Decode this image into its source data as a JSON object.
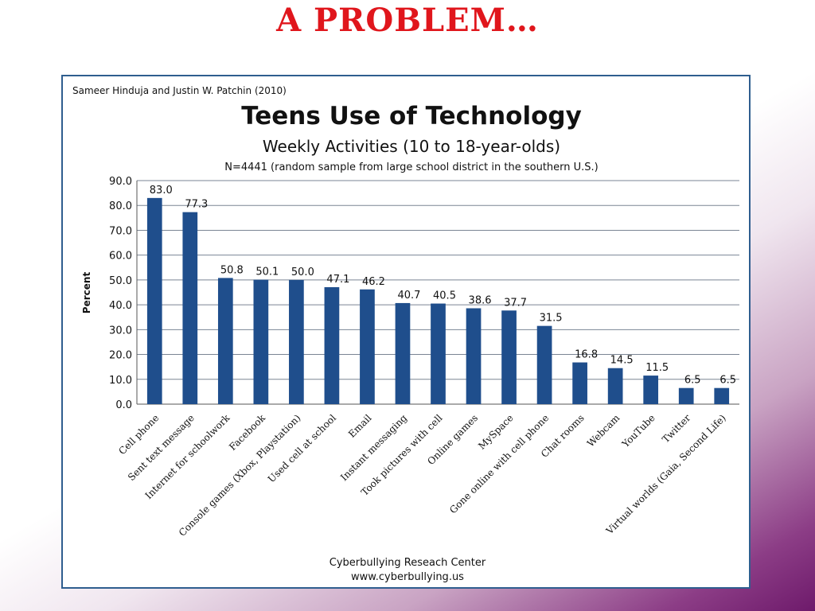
{
  "slide": {
    "title": "A problem…"
  },
  "chart_data": {
    "type": "bar",
    "source_note": "Sameer Hinduja and Justin W. Patchin (2010)",
    "title": "Teens Use of Technology",
    "subtitle": "Weekly Activities (10 to 18-year-olds)",
    "note": "N=4441 (random sample from large school district in the southern U.S.)",
    "ylabel": "Percent",
    "xlabel": "",
    "ylim": [
      0,
      90
    ],
    "ytick_labels": [
      "0.0",
      "10.0",
      "20.0",
      "30.0",
      "40.0",
      "50.0",
      "60.0",
      "70.0",
      "80.0",
      "90.0"
    ],
    "grid": "horizontal",
    "bar_color": "#1f4e8c",
    "categories": [
      "Cell phone",
      "Sent text message",
      "Internet for schoolwork",
      "Facebook",
      "Console games (Xbox, Playstation)",
      "Used cell at school",
      "Email",
      "Instant messaging",
      "Took pictures with cell",
      "Online games",
      "MySpace",
      "Gone online with cell phone",
      "Chat rooms",
      "Webcam",
      "YouTube",
      "Twitter",
      "Virtual worlds (Gaia, Second Life)"
    ],
    "values": [
      83.0,
      77.3,
      50.8,
      50.1,
      50.0,
      47.1,
      46.2,
      40.7,
      40.5,
      38.6,
      37.7,
      31.5,
      16.8,
      14.5,
      11.5,
      6.5,
      6.5
    ],
    "value_labels": [
      "83.0",
      "77.3",
      "50.8",
      "50.1",
      "50.0",
      "47.1",
      "46.2",
      "40.7",
      "40.5",
      "38.6",
      "37.7",
      "31.5",
      "16.8",
      "14.5",
      "11.5",
      "6.5",
      "6.5"
    ],
    "footer_lines": [
      "Cyberbullying Reseach Center",
      "www.cyberbullying.us"
    ]
  }
}
